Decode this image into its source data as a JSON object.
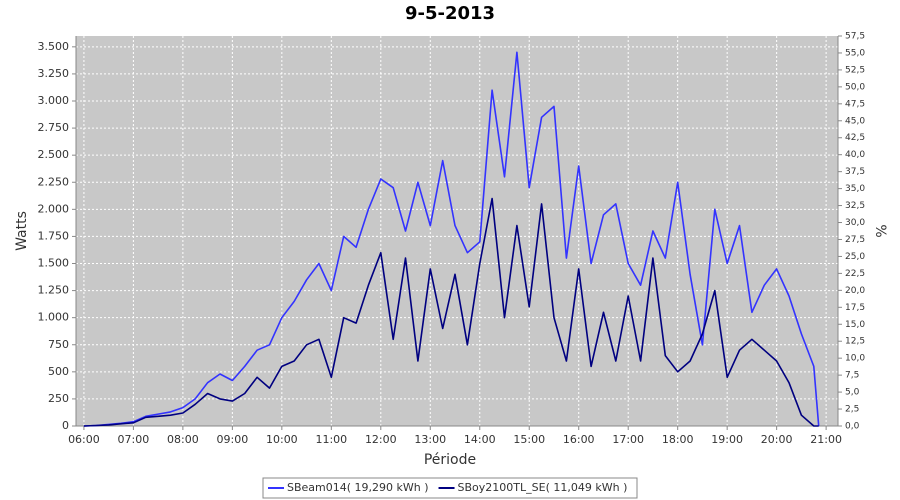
{
  "chart_data": {
    "type": "line",
    "title": "9-5-2013",
    "x_label": "Période",
    "y_label": "Watts",
    "y2_label": "%",
    "x": [
      6.0,
      6.25,
      6.5,
      6.75,
      7.0,
      7.25,
      7.5,
      7.75,
      8.0,
      8.25,
      8.5,
      8.75,
      9.0,
      9.25,
      9.5,
      9.75,
      10.0,
      10.25,
      10.5,
      10.75,
      11.0,
      11.25,
      11.5,
      11.75,
      12.0,
      12.25,
      12.5,
      12.75,
      13.0,
      13.25,
      13.5,
      13.75,
      14.0,
      14.25,
      14.5,
      14.75,
      15.0,
      15.25,
      15.5,
      15.75,
      16.0,
      16.25,
      16.5,
      16.75,
      17.0,
      17.25,
      17.5,
      17.75,
      18.0,
      18.25,
      18.5,
      18.75,
      19.0,
      19.25,
      19.5,
      19.75,
      20.0,
      20.25,
      20.5,
      20.75,
      20.85
    ],
    "series": [
      {
        "name": "SBeam014( 19,290 kWh )",
        "color": "#3333ff",
        "values": [
          0,
          5,
          15,
          25,
          40,
          90,
          110,
          130,
          170,
          250,
          400,
          480,
          420,
          550,
          700,
          750,
          1000,
          1150,
          1350,
          1500,
          1250,
          1750,
          1650,
          2000,
          2280,
          2200,
          1800,
          2250,
          1850,
          2450,
          1850,
          1600,
          1700,
          3100,
          2300,
          3450,
          2200,
          2850,
          2950,
          1550,
          2400,
          1500,
          1950,
          2050,
          1500,
          1300,
          1800,
          1550,
          2250,
          1400,
          750,
          2000,
          1500,
          1850,
          1050,
          1300,
          1450,
          1200,
          850,
          550,
          0
        ]
      },
      {
        "name": "SBoy2100TL_SE( 11,049 kWh )",
        "color": "#000080",
        "values": [
          0,
          5,
          10,
          20,
          30,
          80,
          90,
          100,
          120,
          200,
          300,
          250,
          230,
          300,
          450,
          350,
          550,
          600,
          750,
          800,
          450,
          1000,
          950,
          1300,
          1600,
          800,
          1550,
          600,
          1450,
          900,
          1400,
          750,
          1500,
          2100,
          1000,
          1850,
          1100,
          2050,
          1000,
          600,
          1450,
          550,
          1050,
          600,
          1200,
          600,
          1550,
          650,
          500,
          600,
          850,
          1250,
          450,
          700,
          800,
          700,
          600,
          400,
          100,
          0,
          0
        ]
      }
    ],
    "xlim": [
      5.84,
      21.24
    ],
    "xticks": [
      {
        "value": 6,
        "label": "06:00"
      },
      {
        "value": 7,
        "label": "07:00"
      },
      {
        "value": 8,
        "label": "08:00"
      },
      {
        "value": 9,
        "label": "09:00"
      },
      {
        "value": 10,
        "label": "10:00"
      },
      {
        "value": 11,
        "label": "11:00"
      },
      {
        "value": 12,
        "label": "12:00"
      },
      {
        "value": 13,
        "label": "13:00"
      },
      {
        "value": 14,
        "label": "14:00"
      },
      {
        "value": 15,
        "label": "15:00"
      },
      {
        "value": 16,
        "label": "16:00"
      },
      {
        "value": 17,
        "label": "17:00"
      },
      {
        "value": 18,
        "label": "18:00"
      },
      {
        "value": 19,
        "label": "19:00"
      },
      {
        "value": 20,
        "label": "20:00"
      },
      {
        "value": 21,
        "label": "21:00"
      }
    ],
    "ylim": [
      0,
      3600
    ],
    "yticks": [
      0,
      250,
      500,
      750,
      {
        "value": 1000,
        "label": "1.000"
      },
      {
        "value": 1250,
        "label": "1.250"
      },
      {
        "value": 1500,
        "label": "1.500"
      },
      {
        "value": 1750,
        "label": "1.750"
      },
      {
        "value": 2000,
        "label": "2.000"
      },
      {
        "value": 2250,
        "label": "2.250"
      },
      {
        "value": 2500,
        "label": "2.500"
      },
      {
        "value": 2750,
        "label": "2.750"
      },
      {
        "value": 3000,
        "label": "3.000"
      },
      {
        "value": 3250,
        "label": "3.250"
      },
      {
        "value": 3500,
        "label": "3.500"
      }
    ],
    "y2lim": [
      0,
      57.5
    ],
    "y2ticks": [
      {
        "value": 0,
        "label": "0,0"
      },
      {
        "value": 2.5,
        "label": "2,5"
      },
      {
        "value": 5,
        "label": "5,0"
      },
      {
        "value": 7.5,
        "label": "7,5"
      },
      {
        "value": 10,
        "label": "10,0"
      },
      {
        "value": 12.5,
        "label": "12,5"
      },
      {
        "value": 15,
        "label": "15,0"
      },
      {
        "value": 17.5,
        "label": "17,5"
      },
      {
        "value": 20,
        "label": "20,0"
      },
      {
        "value": 22.5,
        "label": "22,5"
      },
      {
        "value": 25,
        "label": "25,0"
      },
      {
        "value": 27.5,
        "label": "27,5"
      },
      {
        "value": 30,
        "label": "30,0"
      },
      {
        "value": 32.5,
        "label": "32,5"
      },
      {
        "value": 35,
        "label": "35,0"
      },
      {
        "value": 37.5,
        "label": "37,5"
      },
      {
        "value": 40,
        "label": "40,0"
      },
      {
        "value": 42.5,
        "label": "42,5"
      },
      {
        "value": 45,
        "label": "45,0"
      },
      {
        "value": 47.5,
        "label": "47,5"
      },
      {
        "value": 50,
        "label": "50,0"
      },
      {
        "value": 52.5,
        "label": "52,5"
      },
      {
        "value": 55,
        "label": "55,0"
      },
      {
        "value": 57.5,
        "label": "57,5"
      }
    ],
    "grid": true,
    "legend": "bottom"
  }
}
